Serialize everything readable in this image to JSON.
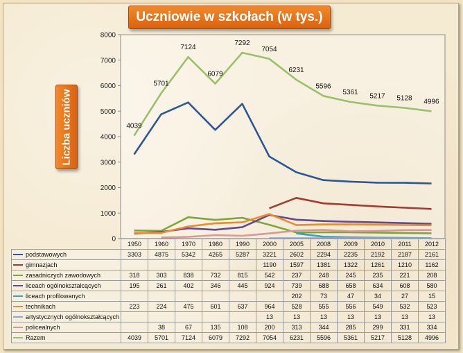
{
  "title": "Uczniowie w szkołach (w tys.)",
  "ylabel": "Liczba uczniów",
  "chart_data": {
    "type": "line",
    "title": "Uczniowie w szkołach (w tys.)",
    "ylabel": "Liczba uczniów",
    "ylim": [
      0,
      8000
    ],
    "yticks": [
      0,
      1000,
      2000,
      3000,
      4000,
      5000,
      6000,
      7000,
      8000
    ],
    "grid": false,
    "legend": "data-table",
    "categories": [
      "1950",
      "1960",
      "1970",
      "1980",
      "1990",
      "2000",
      "2005",
      "2008",
      "2009",
      "2010",
      "2011",
      "2012"
    ],
    "series": [
      {
        "name": "podstawowych",
        "color": "#2e5597",
        "values": [
          3303,
          4875,
          5342,
          4265,
          5287,
          3221,
          2602,
          2294,
          2235,
          2192,
          2187,
          2161
        ]
      },
      {
        "name": "gimnazjach",
        "color": "#a23b31",
        "values": [
          null,
          null,
          null,
          null,
          null,
          1190,
          1597,
          1381,
          1322,
          1261,
          1210,
          1162
        ]
      },
      {
        "name": "zasadniczych zawodowych",
        "color": "#7ea53a",
        "values": [
          318,
          303,
          838,
          732,
          815,
          542,
          237,
          248,
          245,
          235,
          221,
          208
        ]
      },
      {
        "name": "liceach ogólnokształcących",
        "color": "#634a8c",
        "values": [
          195,
          261,
          402,
          346,
          445,
          924,
          739,
          688,
          658,
          634,
          608,
          580
        ]
      },
      {
        "name": "liceach profilowanych",
        "color": "#3aa0bb",
        "values": [
          null,
          null,
          null,
          null,
          null,
          null,
          202,
          73,
          47,
          34,
          27,
          15
        ]
      },
      {
        "name": "technikach",
        "color": "#ea8c2e",
        "values": [
          223,
          224,
          475,
          601,
          637,
          964,
          528,
          555,
          556,
          549,
          532,
          523
        ]
      },
      {
        "name": "artystycznych ogólnokształcących",
        "color": "#8ea6d1",
        "values": [
          null,
          null,
          null,
          null,
          null,
          13,
          13,
          13,
          13,
          13,
          13,
          13
        ]
      },
      {
        "name": "policealnych",
        "color": "#d99795",
        "values": [
          null,
          38,
          67,
          135,
          108,
          200,
          313,
          344,
          285,
          299,
          331,
          334
        ]
      },
      {
        "name": "Razem",
        "color": "#9bc06b",
        "values": [
          4039,
          5701,
          7124,
          6079,
          7292,
          7054,
          6231,
          5596,
          5361,
          5217,
          5128,
          4996
        ],
        "labels": true
      }
    ]
  }
}
